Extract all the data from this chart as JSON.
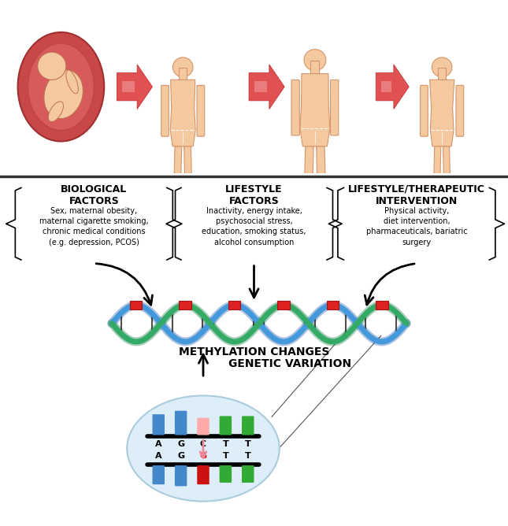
{
  "fig_width": 6.45,
  "fig_height": 6.68,
  "dpi": 100,
  "top_bg_color": "#ddeef8",
  "bottom_bg_color": "#ffffff",
  "bio_factors_title": "BIOLOGICAL\nFACTORS",
  "bio_factors_text": "Sex, maternal obesity,\nmaternal cigarette smoking,\nchronic medical conditions\n(e.g. depression, PCOS)",
  "lifestyle_title": "LIFESTYLE\nFACTORS",
  "lifestyle_text": "Inactivity, energy intake,\npsychosocial stress,\neducation, smoking status,\nalcohol consumption",
  "intervention_title": "LIFESTYLE/THERAPEUTIC\nINTERVENTION",
  "intervention_text": "Physical activity,\ndiet intervention,\npharmaceuticals, bariatric\nsurgery",
  "methylation_label": "METHYLATION CHANGES",
  "genetic_label": "GENETIC VARIATION",
  "body_color": "#f5c9a0",
  "body_outline": "#d4956a",
  "fetus_outer": "#c84040",
  "fetus_inner": "#e06060",
  "fetus_skin": "#f5c9a0",
  "dna_blue": "#4499dd",
  "dna_green": "#33aa66",
  "dna_black": "#333333",
  "dna_marker": "#cc2222",
  "snp_circle_fill": "#ddeef8",
  "snp_circle_edge": "#aaccdd",
  "base_A_blue": "#4488cc",
  "base_G_green": "#33aa33",
  "base_T_gray": "#888888",
  "base_C_pink": "#ffaaaa",
  "base_G_red": "#cc1111",
  "arrow_red": "#cc3333"
}
